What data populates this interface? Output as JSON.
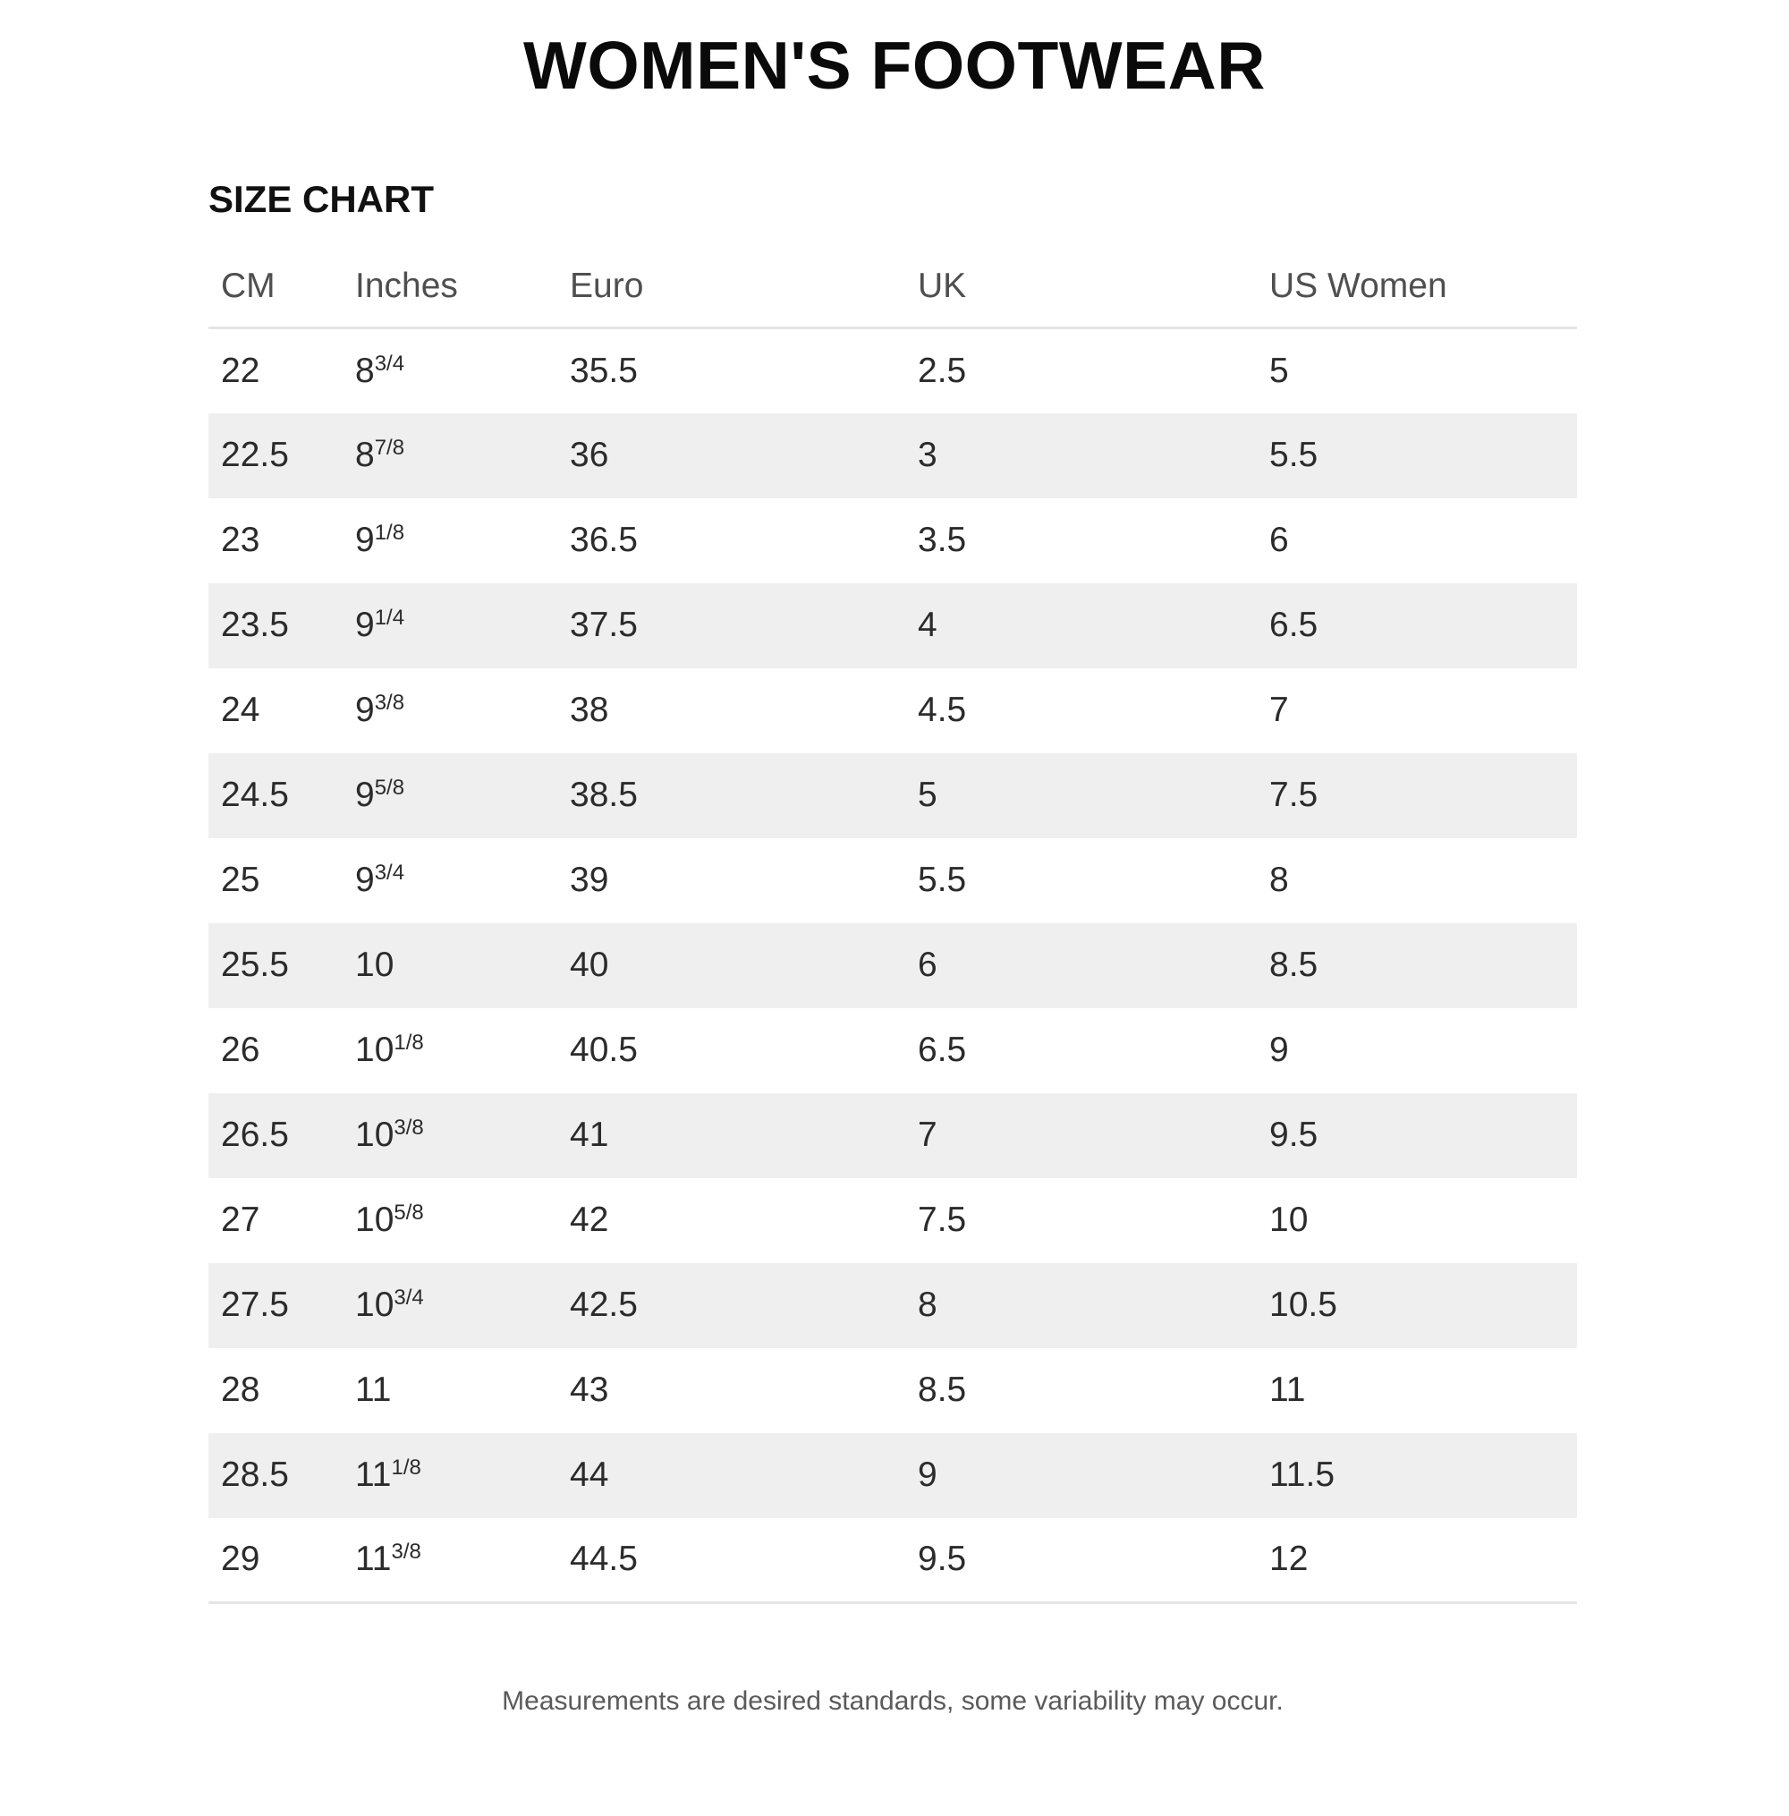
{
  "header": {
    "title": "WOMEN'S FOOTWEAR",
    "section_title": "SIZE CHART"
  },
  "table": {
    "columns": [
      "CM",
      "Inches",
      "Euro",
      "UK",
      "US Women"
    ],
    "rows": [
      {
        "cm": "22",
        "inches": "8",
        "inches_frac": "3/4",
        "euro": "35.5",
        "uk": "2.5",
        "us_women": "5"
      },
      {
        "cm": "22.5",
        "inches": "8",
        "inches_frac": "7/8",
        "euro": "36",
        "uk": "3",
        "us_women": "5.5"
      },
      {
        "cm": "23",
        "inches": "9",
        "inches_frac": "1/8",
        "euro": "36.5",
        "uk": "3.5",
        "us_women": "6"
      },
      {
        "cm": "23.5",
        "inches": "9",
        "inches_frac": "1/4",
        "euro": "37.5",
        "uk": "4",
        "us_women": "6.5"
      },
      {
        "cm": "24",
        "inches": "9",
        "inches_frac": "3/8",
        "euro": "38",
        "uk": "4.5",
        "us_women": "7"
      },
      {
        "cm": "24.5",
        "inches": "9",
        "inches_frac": "5/8",
        "euro": "38.5",
        "uk": "5",
        "us_women": "7.5"
      },
      {
        "cm": "25",
        "inches": "9",
        "inches_frac": "3/4",
        "euro": "39",
        "uk": "5.5",
        "us_women": "8"
      },
      {
        "cm": "25.5",
        "inches": "10",
        "inches_frac": "",
        "euro": "40",
        "uk": "6",
        "us_women": "8.5"
      },
      {
        "cm": "26",
        "inches": "10",
        "inches_frac": "1/8",
        "euro": "40.5",
        "uk": "6.5",
        "us_women": "9"
      },
      {
        "cm": "26.5",
        "inches": "10",
        "inches_frac": "3/8",
        "euro": "41",
        "uk": "7",
        "us_women": "9.5"
      },
      {
        "cm": "27",
        "inches": "10",
        "inches_frac": "5/8",
        "euro": "42",
        "uk": "7.5",
        "us_women": "10"
      },
      {
        "cm": "27.5",
        "inches": "10",
        "inches_frac": "3/4",
        "euro": "42.5",
        "uk": "8",
        "us_women": "10.5"
      },
      {
        "cm": "28",
        "inches": "11",
        "inches_frac": "",
        "euro": "43",
        "uk": "8.5",
        "us_women": "11"
      },
      {
        "cm": "28.5",
        "inches": "11",
        "inches_frac": "1/8",
        "euro": "44",
        "uk": "9",
        "us_women": "11.5"
      },
      {
        "cm": "29",
        "inches": "11",
        "inches_frac": "3/8",
        "euro": "44.5",
        "uk": "9.5",
        "us_women": "12"
      }
    ]
  },
  "footer": {
    "note": "Measurements are desired standards, some variability may occur."
  },
  "colors": {
    "stripe": "#efefef",
    "divider": "#e5e5e5",
    "title_text": "#0a0a0a",
    "header_text": "#4f4f4f",
    "cell_text": "#2b2b2b",
    "footnote_text": "#5a5a5a"
  }
}
